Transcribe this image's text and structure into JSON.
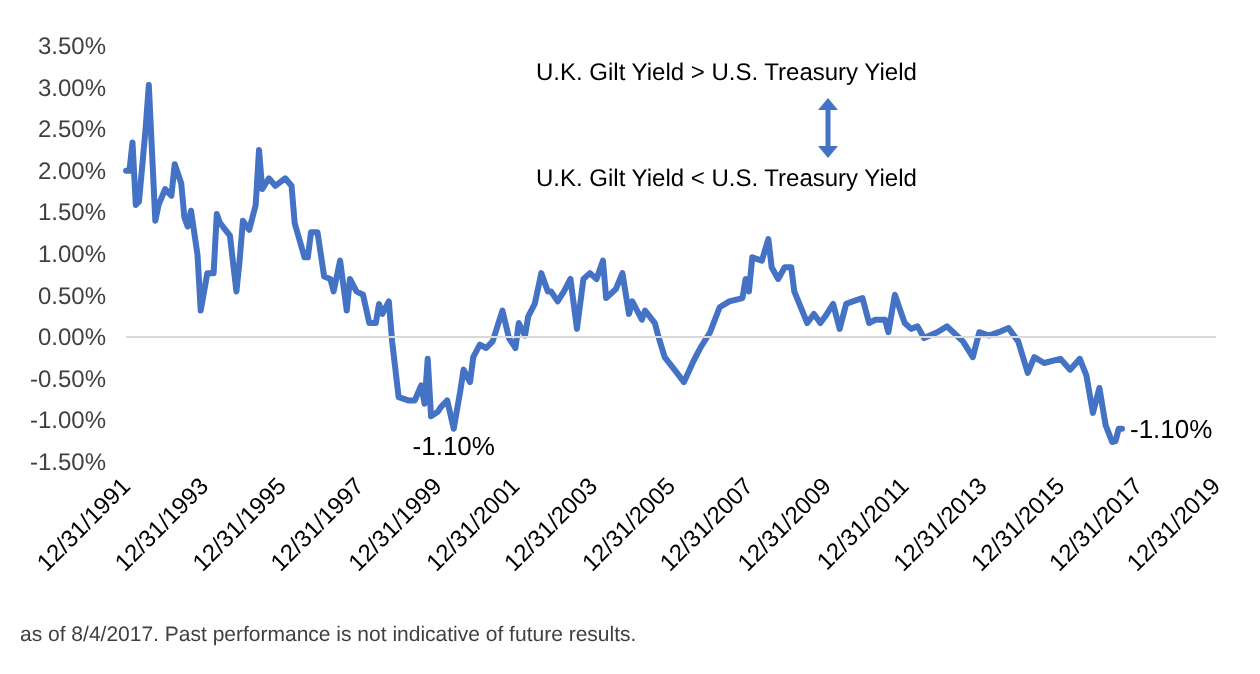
{
  "chart_data": {
    "type": "line",
    "x": [
      "1992-01",
      "1992-02",
      "1992-03",
      "1992-04",
      "1992-05",
      "1992-07",
      "1992-08",
      "1992-10",
      "1992-11",
      "1993-01",
      "1993-03",
      "1993-04",
      "1993-06",
      "1993-07",
      "1993-08",
      "1993-09",
      "1993-11",
      "1993-12",
      "1994-02",
      "1994-04",
      "1994-05",
      "1994-06",
      "1994-09",
      "1994-11",
      "1994-12",
      "1995-01",
      "1995-03",
      "1995-05",
      "1995-06",
      "1995-07",
      "1995-09",
      "1995-11",
      "1996-02",
      "1996-04",
      "1996-05",
      "1996-08",
      "1996-09",
      "1996-10",
      "1996-12",
      "1997-02",
      "1997-04",
      "1997-05",
      "1997-07",
      "1997-09",
      "1997-10",
      "1997-12",
      "1998-02",
      "1998-04",
      "1998-06",
      "1998-07",
      "1998-08",
      "1998-10",
      "1998-11",
      "1999-01",
      "1999-04",
      "1999-06",
      "1999-08",
      "1999-09",
      "1999-10",
      "1999-11",
      "2000-01",
      "2000-02",
      "2000-04",
      "2000-06",
      "2000-08",
      "2000-09",
      "2000-11",
      "2000-12",
      "2001-02",
      "2001-04",
      "2001-06",
      "2001-09",
      "2001-11",
      "2002-01",
      "2002-02",
      "2002-04",
      "2002-05",
      "2002-07",
      "2002-09",
      "2002-11",
      "2002-12",
      "2003-02",
      "2003-04",
      "2003-06",
      "2003-08",
      "2003-10",
      "2003-12",
      "2004-02",
      "2004-04",
      "2004-05",
      "2004-08",
      "2004-10",
      "2004-12",
      "2005-01",
      "2005-04",
      "2005-05",
      "2005-08",
      "2005-09",
      "2005-11",
      "2006-02",
      "2006-05",
      "2006-08",
      "2006-10",
      "2007-01",
      "2007-04",
      "2007-07",
      "2007-11",
      "2007-12",
      "2008-01",
      "2008-02",
      "2008-05",
      "2008-07",
      "2008-08",
      "2008-10",
      "2008-12",
      "2009-02",
      "2009-03",
      "2009-07",
      "2009-09",
      "2009-11",
      "2010-01",
      "2010-03",
      "2010-05",
      "2010-07",
      "2010-09",
      "2010-12",
      "2011-02",
      "2011-04",
      "2011-07",
      "2011-08",
      "2011-10",
      "2012-01",
      "2012-03",
      "2012-05",
      "2012-07",
      "2012-11",
      "2013-02",
      "2013-04",
      "2013-07",
      "2013-10",
      "2013-12",
      "2014-03",
      "2014-06",
      "2014-09",
      "2014-12",
      "2015-03",
      "2015-05",
      "2015-08",
      "2016-01",
      "2016-04",
      "2016-07",
      "2016-09",
      "2016-11",
      "2017-01",
      "2017-03",
      "2017-05",
      "2017-06",
      "2017-07",
      "2017-08"
    ],
    "series": [
      {
        "color": "#4472c4",
        "values": [
          2.0,
          2.0,
          2.34,
          1.59,
          1.63,
          2.49,
          3.03,
          1.4,
          1.59,
          1.78,
          1.7,
          2.08,
          1.85,
          1.44,
          1.33,
          1.52,
          0.99,
          0.32,
          0.77,
          0.77,
          1.48,
          1.37,
          1.22,
          0.55,
          0.92,
          1.4,
          1.29,
          1.59,
          2.25,
          1.78,
          1.91,
          1.82,
          1.91,
          1.82,
          1.37,
          0.96,
          0.96,
          1.26,
          1.26,
          0.73,
          0.7,
          0.55,
          0.92,
          0.32,
          0.7,
          0.55,
          0.51,
          0.17,
          0.17,
          0.4,
          0.28,
          0.43,
          -0.05,
          -0.72,
          -0.76,
          -0.76,
          -0.58,
          -0.8,
          -0.26,
          -0.95,
          -0.9,
          -0.84,
          -0.76,
          -1.1,
          -0.65,
          -0.39,
          -0.54,
          -0.24,
          -0.09,
          -0.13,
          -0.05,
          0.32,
          -0.01,
          -0.13,
          0.17,
          0.02,
          0.25,
          0.4,
          0.77,
          0.55,
          0.55,
          0.43,
          0.55,
          0.7,
          0.1,
          0.7,
          0.77,
          0.7,
          0.92,
          0.47,
          0.58,
          0.77,
          0.28,
          0.43,
          0.21,
          0.32,
          0.17,
          0.02,
          -0.24,
          -0.39,
          -0.54,
          -0.28,
          -0.13,
          0.06,
          0.36,
          0.43,
          0.47,
          0.7,
          0.55,
          0.96,
          0.92,
          1.18,
          0.84,
          0.7,
          0.84,
          0.84,
          0.55,
          0.17,
          0.28,
          0.17,
          0.28,
          0.4,
          0.1,
          0.4,
          0.43,
          0.47,
          0.17,
          0.21,
          0.21,
          0.06,
          0.51,
          0.17,
          0.1,
          0.13,
          -0.01,
          0.06,
          0.13,
          0.06,
          -0.05,
          -0.24,
          0.06,
          0.02,
          0.06,
          0.11,
          -0.05,
          -0.43,
          -0.24,
          -0.31,
          -0.26,
          -0.39,
          -0.26,
          -0.46,
          -0.91,
          -0.61,
          -1.06,
          -1.26,
          -1.25,
          -1.1,
          -1.1
        ]
      }
    ],
    "xlim": [
      "1991-12-31",
      "2019-12-31"
    ],
    "xticks": [
      {
        "value": "1991-12-31",
        "label": "12/31/1991"
      },
      {
        "value": "1993-12-31",
        "label": "12/31/1993"
      },
      {
        "value": "1995-12-31",
        "label": "12/31/1995"
      },
      {
        "value": "1997-12-31",
        "label": "12/31/1997"
      },
      {
        "value": "1999-12-31",
        "label": "12/31/1999"
      },
      {
        "value": "2001-12-31",
        "label": "12/31/2001"
      },
      {
        "value": "2003-12-31",
        "label": "12/31/2003"
      },
      {
        "value": "2005-12-31",
        "label": "12/31/2005"
      },
      {
        "value": "2007-12-31",
        "label": "12/31/2007"
      },
      {
        "value": "2009-12-31",
        "label": "12/31/2009"
      },
      {
        "value": "2011-12-31",
        "label": "12/31/2011"
      },
      {
        "value": "2013-12-31",
        "label": "12/31/2013"
      },
      {
        "value": "2015-12-31",
        "label": "12/31/2015"
      },
      {
        "value": "2017-12-31",
        "label": "12/31/2017"
      },
      {
        "value": "2019-12-31",
        "label": "12/31/2019"
      }
    ],
    "ylim": [
      -1.5,
      3.5
    ],
    "yticks": [
      {
        "value": -1.5,
        "label": "-1.50%"
      },
      {
        "value": -1,
        "label": "-1.00%"
      },
      {
        "value": -0.5,
        "label": "-0.50%"
      },
      {
        "value": 0,
        "label": "0.00%"
      },
      {
        "value": 0.5,
        "label": "0.50%"
      },
      {
        "value": 1,
        "label": "1.00%"
      },
      {
        "value": 1.5,
        "label": "1.50%"
      },
      {
        "value": 2,
        "label": "2.00%"
      },
      {
        "value": 2.5,
        "label": "2.50%"
      },
      {
        "value": 3,
        "label": "3.00%"
      },
      {
        "value": 3.5,
        "label": "3.50%"
      }
    ],
    "ref_lines": [
      {
        "axis": "y",
        "value": 0,
        "color": "#d9d9d9"
      }
    ],
    "grid": false,
    "marker": "none",
    "line_style": "solid",
    "annotations": [
      {
        "text": "-1.10%",
        "x": "2000-06",
        "y": -1.1
      },
      {
        "text": "-1.10%",
        "x": "2017-08",
        "y": -1.1
      },
      "U.K. Gilt Yield > U.S. Treasury Yield",
      "U.K. Gilt Yield < U.S. Treasury Yield",
      "as of 8/4/2017. Past performance is not indicative of future results."
    ]
  }
}
